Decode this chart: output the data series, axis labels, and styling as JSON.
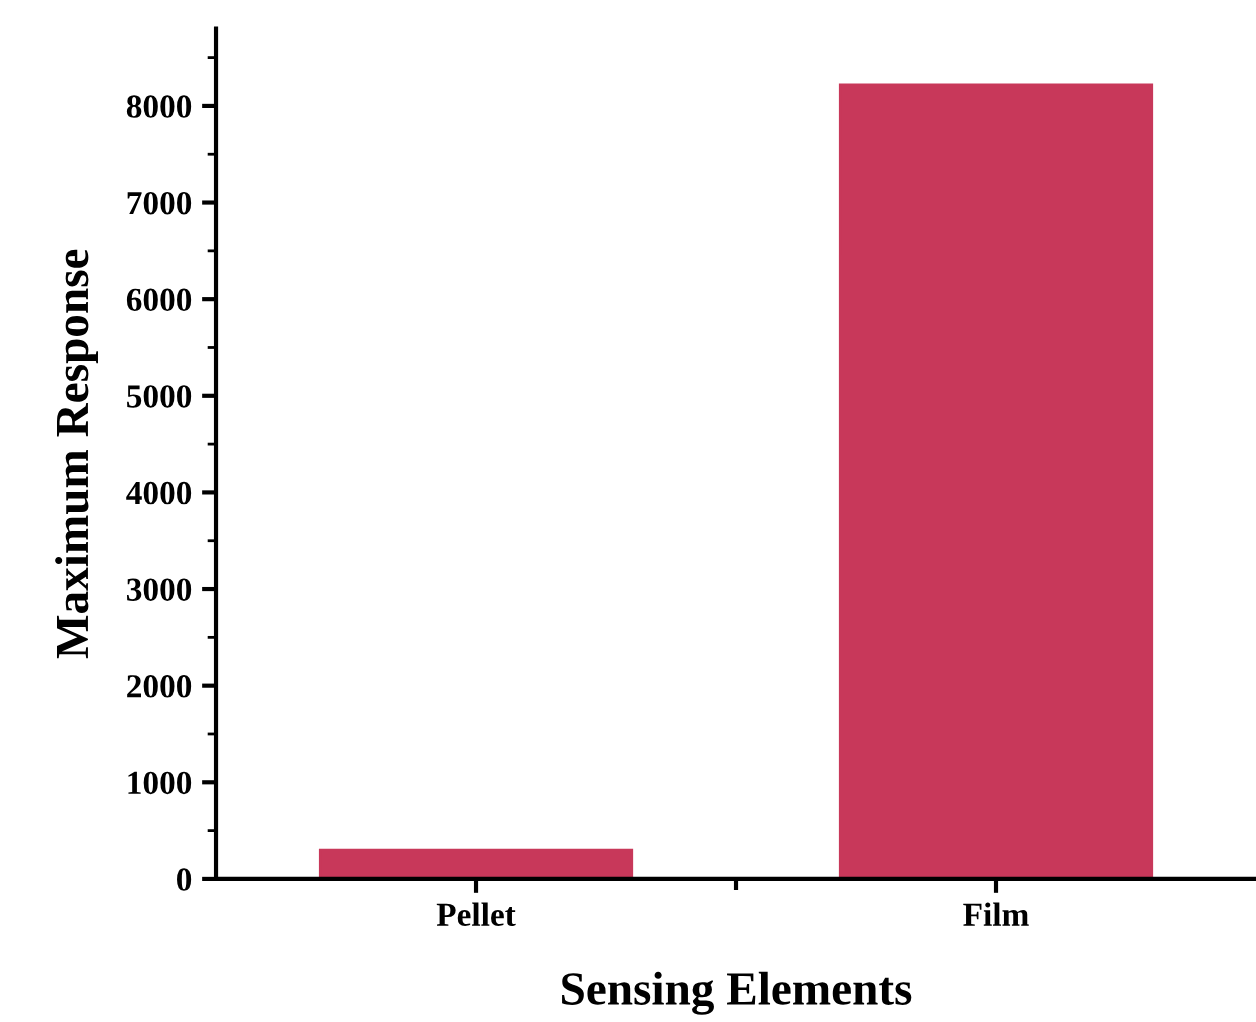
{
  "chart_data": {
    "type": "bar",
    "xlabel": "Sensing Elements",
    "ylabel": "Maximum Response",
    "categories": [
      "Pellet",
      "Film"
    ],
    "values": [
      300,
      8220
    ],
    "color": "#c8385a",
    "ylim": [
      0,
      8800
    ],
    "yticks": [
      0,
      1000,
      2000,
      3000,
      4000,
      5000,
      6000,
      7000,
      8000
    ],
    "grid": false,
    "legend": false
  }
}
